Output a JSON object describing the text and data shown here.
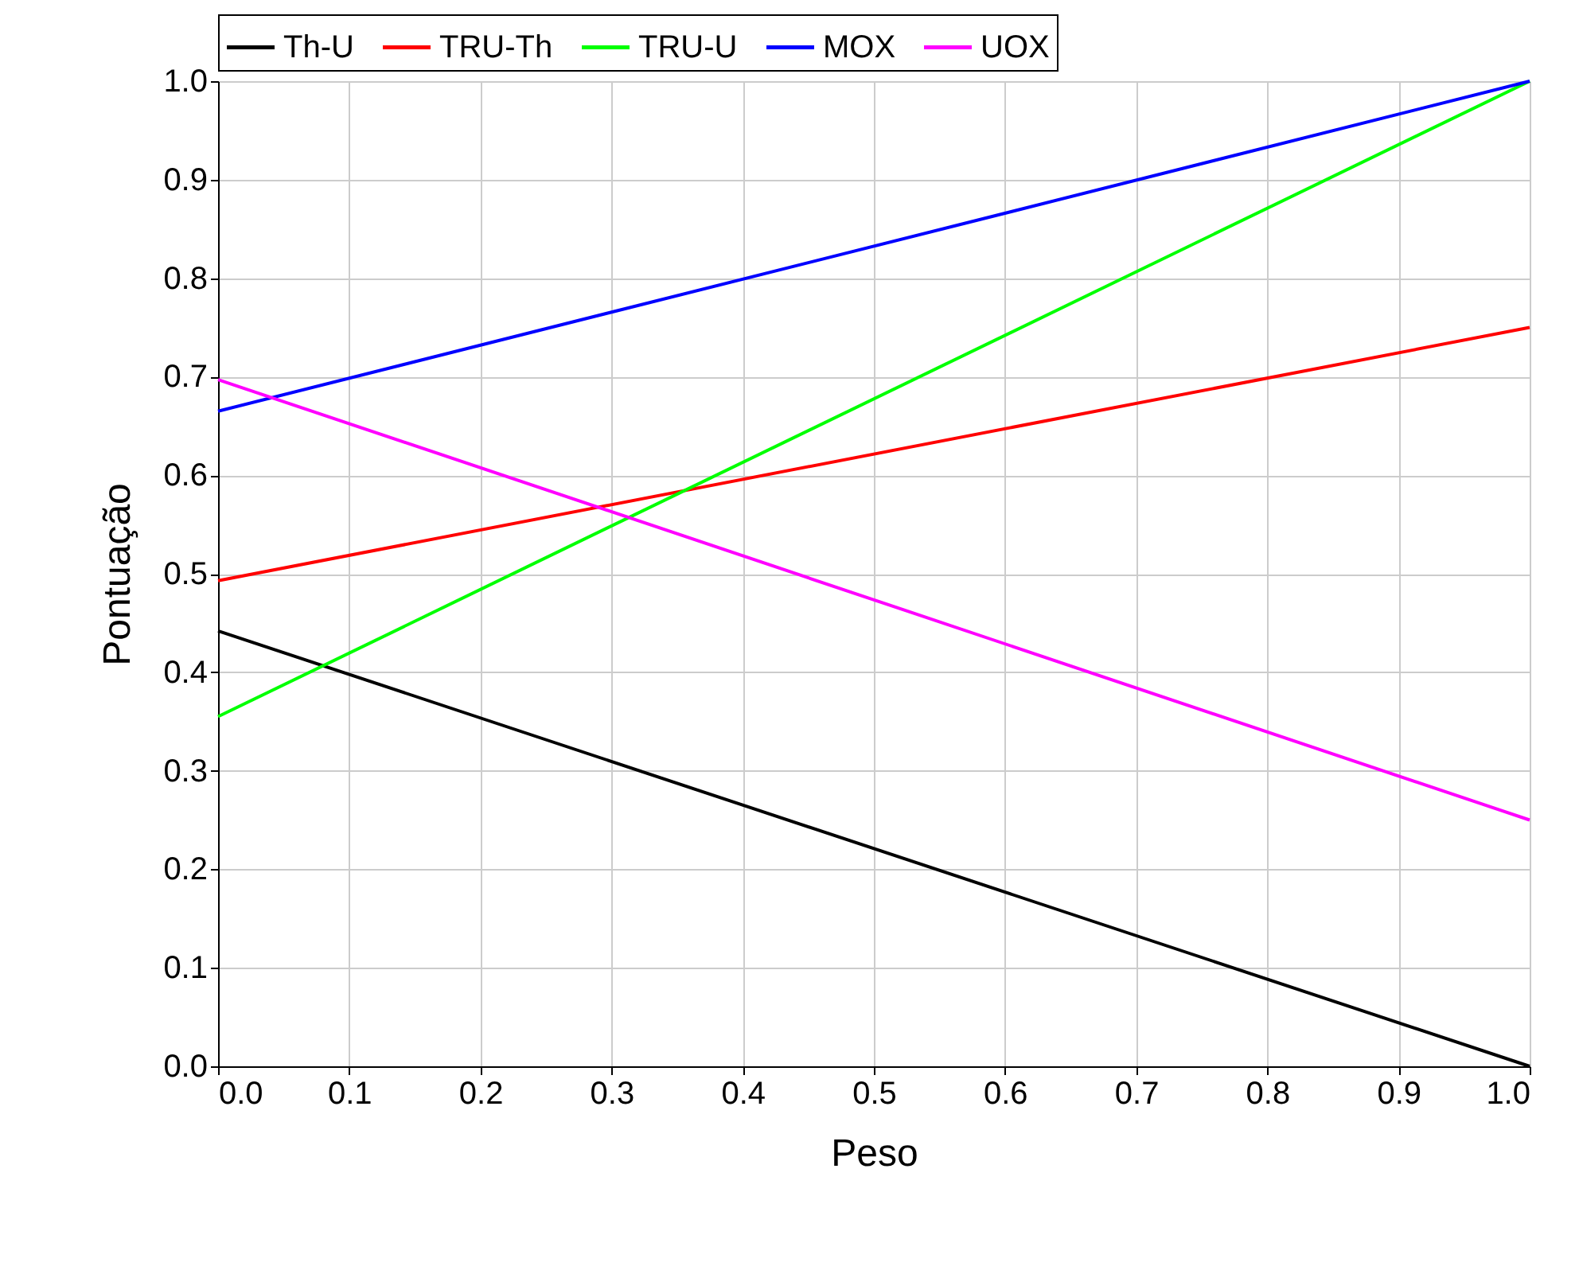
{
  "chart_data": {
    "type": "line",
    "xlabel": "Peso",
    "ylabel": "Pontuação",
    "x": [
      0.0,
      1.0
    ],
    "series": [
      {
        "name": "Th-U",
        "color": "#000000",
        "values": [
          0.442,
          0.0
        ]
      },
      {
        "name": "TRU-Th",
        "color": "#ff0000",
        "values": [
          0.493,
          0.75
        ]
      },
      {
        "name": "TRU-U",
        "color": "#00ff00",
        "values": [
          0.355,
          1.0
        ]
      },
      {
        "name": "MOX",
        "color": "#0000ff",
        "values": [
          0.665,
          1.0
        ]
      },
      {
        "name": "UOX",
        "color": "#ff00ff",
        "values": [
          0.697,
          0.25
        ]
      }
    ],
    "xlim": [
      0.0,
      1.0
    ],
    "ylim": [
      0.0,
      1.0
    ],
    "xticks": [
      {
        "value": 0.0,
        "label": "0.0"
      },
      {
        "value": 0.1,
        "label": "0.1"
      },
      {
        "value": 0.2,
        "label": "0.2"
      },
      {
        "value": 0.3,
        "label": "0.3"
      },
      {
        "value": 0.4,
        "label": "0.4"
      },
      {
        "value": 0.5,
        "label": "0.5"
      },
      {
        "value": 0.6,
        "label": "0.6"
      },
      {
        "value": 0.7,
        "label": "0.7"
      },
      {
        "value": 0.8,
        "label": "0.8"
      },
      {
        "value": 0.9,
        "label": "0.9"
      },
      {
        "value": 1.0,
        "label": "1.0"
      }
    ],
    "yticks": [
      {
        "value": 0.0,
        "label": "0.0"
      },
      {
        "value": 0.1,
        "label": "0.1"
      },
      {
        "value": 0.2,
        "label": "0.2"
      },
      {
        "value": 0.3,
        "label": "0.3"
      },
      {
        "value": 0.4,
        "label": "0.4"
      },
      {
        "value": 0.5,
        "label": "0.5"
      },
      {
        "value": 0.6,
        "label": "0.6"
      },
      {
        "value": 0.7,
        "label": "0.7"
      },
      {
        "value": 0.8,
        "label": "0.8"
      },
      {
        "value": 0.9,
        "label": "0.9"
      },
      {
        "value": 1.0,
        "label": "1.0"
      }
    ],
    "grid": true,
    "legend": "top",
    "marker": "none",
    "line_style": "solid"
  }
}
